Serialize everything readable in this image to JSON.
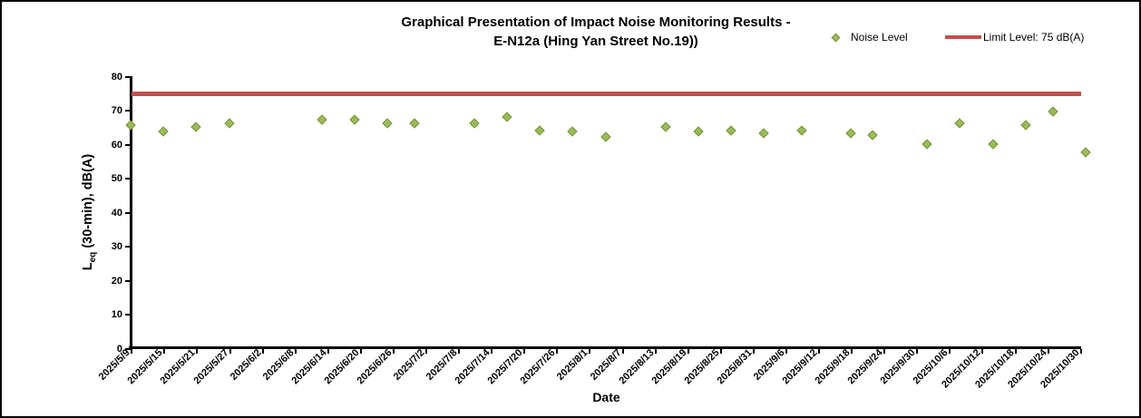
{
  "title": {
    "line1": "Graphical Presentation of Impact Noise Monitoring Results -",
    "line2": "E-N12a (Hing Yan Street No.19))"
  },
  "legend": {
    "noise_label": "Noise Level",
    "limit_label": "Limit Level: 75 dB(A)"
  },
  "axes": {
    "y_label_main": "L",
    "y_label_sub": "eq",
    "y_label_rest": " (30-min), dB(A)",
    "x_label": "Date"
  },
  "colors": {
    "marker_fill": "#9bbb59",
    "marker_border": "#77933c",
    "limit_line": "#c0504d",
    "axis": "#000000",
    "background": "#ffffff"
  },
  "chart_data": {
    "type": "scatter",
    "title": "Graphical Presentation of Impact Noise Monitoring Results - E-N12a (Hing Yan Street No.19))",
    "xlabel": "Date",
    "ylabel": "Leq (30-min), dB(A)",
    "ylim": [
      0,
      80
    ],
    "y_ticks": [
      0,
      10,
      20,
      30,
      40,
      50,
      60,
      70,
      80
    ],
    "x_tick_labels": [
      "2025/5/9",
      "2025/5/15",
      "2025/5/21",
      "2025/5/27",
      "2025/6/2",
      "2025/6/8",
      "2025/6/14",
      "2025/6/20",
      "2025/6/26",
      "2025/7/2",
      "2025/7/8",
      "2025/7/14",
      "2025/7/20",
      "2025/7/26",
      "2025/8/1",
      "2025/8/7",
      "2025/8/13",
      "2025/8/19",
      "2025/8/25",
      "2025/8/31",
      "2025/9/6",
      "2025/9/12",
      "2025/9/18",
      "2025/9/24",
      "2025/9/30",
      "2025/10/6",
      "2025/10/12",
      "2025/10/18",
      "2025/10/24",
      "2025/10/30"
    ],
    "x_tick_interval_days": 6,
    "grid": false,
    "legend_position": "top-right",
    "series": [
      {
        "name": "Noise Level",
        "marker": "diamond",
        "points": [
          {
            "date": "2025/5/9",
            "day": 0,
            "value": 65.5
          },
          {
            "date": "2025/5/15",
            "day": 6,
            "value": 63.5
          },
          {
            "date": "2025/5/21",
            "day": 12,
            "value": 65
          },
          {
            "date": "2025/5/27",
            "day": 18,
            "value": 66
          },
          {
            "date": "2025/6/13",
            "day": 35,
            "value": 67
          },
          {
            "date": "2025/6/19",
            "day": 41,
            "value": 67
          },
          {
            "date": "2025/6/25",
            "day": 47,
            "value": 66
          },
          {
            "date": "2025/6/30",
            "day": 52,
            "value": 66
          },
          {
            "date": "2025/7/11",
            "day": 63,
            "value": 66
          },
          {
            "date": "2025/7/17",
            "day": 69,
            "value": 68
          },
          {
            "date": "2025/7/23",
            "day": 75,
            "value": 64
          },
          {
            "date": "2025/7/29",
            "day": 81,
            "value": 63.5
          },
          {
            "date": "2025/8/4",
            "day": 87,
            "value": 62
          },
          {
            "date": "2025/8/15",
            "day": 98,
            "value": 65
          },
          {
            "date": "2025/8/21",
            "day": 104,
            "value": 63.5
          },
          {
            "date": "2025/8/27",
            "day": 110,
            "value": 64
          },
          {
            "date": "2025/9/2",
            "day": 116,
            "value": 63
          },
          {
            "date": "2025/9/9",
            "day": 123,
            "value": 64
          },
          {
            "date": "2025/9/18",
            "day": 132,
            "value": 63
          },
          {
            "date": "2025/9/22",
            "day": 136,
            "value": 62.5
          },
          {
            "date": "2025/10/2",
            "day": 146,
            "value": 60
          },
          {
            "date": "2025/10/8",
            "day": 152,
            "value": 66
          },
          {
            "date": "2025/10/14",
            "day": 158,
            "value": 60
          },
          {
            "date": "2025/10/20",
            "day": 164,
            "value": 65.5
          },
          {
            "date": "2025/10/25",
            "day": 169,
            "value": 69.5
          },
          {
            "date": "2025/10/31",
            "day": 175,
            "value": 57.5
          }
        ]
      },
      {
        "name": "Limit Level: 75 dB(A)",
        "type": "horizontal-line",
        "value": 75
      }
    ]
  }
}
